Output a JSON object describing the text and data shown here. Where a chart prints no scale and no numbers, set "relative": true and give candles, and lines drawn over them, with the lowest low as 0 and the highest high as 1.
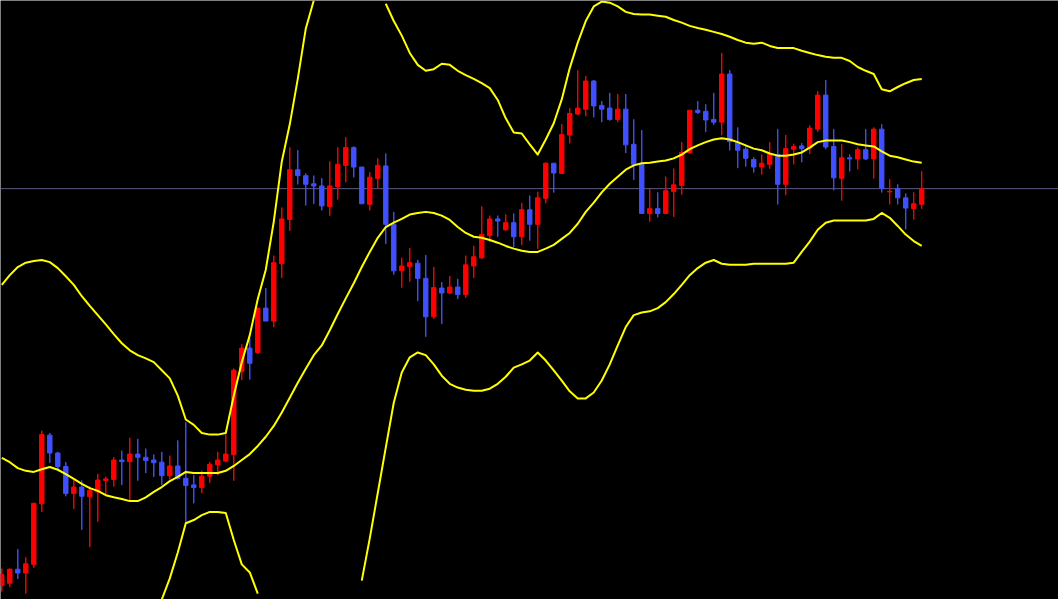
{
  "chart_data": {
    "type": "candlestick",
    "relative": true,
    "categories": [
      null,
      null,
      null,
      null,
      null,
      null,
      null,
      null,
      null,
      null,
      null,
      null,
      null,
      null,
      null,
      null,
      null,
      null,
      null,
      null,
      null,
      null,
      null,
      null,
      null,
      null,
      null,
      null,
      null,
      null,
      null,
      null,
      null,
      null,
      null,
      null,
      null,
      null,
      null,
      null,
      null,
      null,
      null,
      null,
      null,
      null,
      null,
      null,
      null,
      null,
      null,
      null,
      null,
      null,
      null,
      null,
      null,
      null,
      null,
      null,
      null,
      null,
      null,
      null,
      null,
      null,
      null,
      null,
      null,
      null,
      null,
      null,
      null,
      null,
      null,
      null,
      null,
      null,
      null,
      null,
      null,
      null,
      null,
      null,
      null,
      null,
      null,
      null,
      null,
      null,
      null,
      null,
      null,
      null,
      null,
      null,
      null,
      null,
      null,
      null,
      null,
      null,
      null,
      null,
      null,
      null,
      null,
      null,
      null,
      null,
      null,
      null,
      null,
      null,
      null,
      null
    ],
    "ohlc": [
      [
        0.015,
        0.046,
        0.004,
        0.035
      ],
      [
        0.019,
        0.046,
        0.012,
        0.045
      ],
      [
        0.045,
        0.082,
        0.027,
        0.038
      ],
      [
        0.038,
        0.067,
        0,
        0.055
      ],
      [
        0.054,
        0.167,
        0.048,
        0.167
      ],
      [
        0.166,
        0.301,
        0.151,
        0.294
      ],
      [
        0.293,
        0.297,
        0.242,
        0.26
      ],
      [
        0.26,
        0.262,
        0.229,
        0.235
      ],
      [
        0.235,
        0.243,
        0.18,
        0.185
      ],
      [
        0.185,
        0.211,
        0.157,
        0.197
      ],
      [
        0.197,
        0.209,
        0.118,
        0.18
      ],
      [
        0.179,
        0.198,
        0.086,
        0.191
      ],
      [
        0.188,
        0.221,
        0.133,
        0.21
      ],
      [
        0.209,
        0.216,
        0.183,
        0.212
      ],
      [
        0.211,
        0.252,
        0.198,
        0.247
      ],
      [
        0.247,
        0.264,
        0.201,
        0.244
      ],
      [
        0.244,
        0.288,
        0.173,
        0.258
      ],
      [
        0.258,
        0.286,
        0.209,
        0.252
      ],
      [
        0.252,
        0.268,
        0.223,
        0.246
      ],
      [
        0.247,
        0.257,
        0.216,
        0.242
      ],
      [
        0.243,
        0.262,
        0.201,
        0.218
      ],
      [
        0.218,
        0.255,
        0.211,
        0.236
      ],
      [
        0.236,
        0.283,
        0.211,
        0.213
      ],
      [
        0.213,
        0.317,
        0.131,
        0.2
      ],
      [
        0.201,
        0.219,
        0.167,
        0.196
      ],
      [
        0.196,
        0.227,
        0.186,
        0.217
      ],
      [
        0.217,
        0.243,
        0.205,
        0.239
      ],
      [
        0.238,
        0.262,
        0.219,
        0.247
      ],
      [
        0.245,
        0.294,
        0.243,
        0.258
      ],
      [
        0.257,
        0.416,
        0.209,
        0.413
      ],
      [
        0.411,
        0.461,
        0.395,
        0.454
      ],
      [
        0.454,
        0.473,
        0.396,
        0.426
      ],
      [
        0.446,
        0.528,
        0.443,
        0.528
      ],
      [
        0.528,
        0.565,
        0.504,
        0.504
      ],
      [
        0.504,
        0.625,
        0.493,
        0.612
      ],
      [
        0.61,
        0.714,
        0.584,
        0.693
      ],
      [
        0.692,
        0.825,
        0.671,
        0.784
      ],
      [
        0.784,
        0.82,
        0.757,
        0.773
      ],
      [
        0.773,
        0.777,
        0.718,
        0.757
      ],
      [
        0.758,
        0.773,
        0.721,
        0.754
      ],
      [
        0.754,
        0.768,
        0.709,
        0.717
      ],
      [
        0.716,
        0.799,
        0.699,
        0.754
      ],
      [
        0.753,
        0.825,
        0.729,
        0.794
      ],
      [
        0.792,
        0.844,
        0.761,
        0.825
      ],
      [
        0.825,
        0.827,
        0.77,
        0.789
      ],
      [
        0.789,
        0.789,
        0.721,
        0.721
      ],
      [
        0.72,
        0.779,
        0.709,
        0.77
      ],
      [
        0.768,
        0.805,
        0.749,
        0.792
      ],
      [
        0.791,
        0.814,
        0.647,
        0.683
      ],
      [
        0.683,
        0.706,
        0.59,
        0.597
      ],
      [
        0.597,
        0.621,
        0.566,
        0.606
      ],
      [
        0.605,
        0.639,
        0.577,
        0.612
      ],
      [
        0.611,
        0.617,
        0.541,
        0.583
      ],
      [
        0.583,
        0.626,
        0.475,
        0.512
      ],
      [
        0.512,
        0.604,
        0.508,
        0.566
      ],
      [
        0.565,
        0.576,
        0.499,
        0.556
      ],
      [
        0.556,
        0.587,
        0.554,
        0.567
      ],
      [
        0.567,
        0.582,
        0.545,
        0.553
      ],
      [
        0.553,
        0.625,
        0.547,
        0.608
      ],
      [
        0.606,
        0.643,
        0.584,
        0.623
      ],
      [
        0.621,
        0.716,
        0.619,
        0.664
      ],
      [
        0.662,
        0.699,
        0.651,
        0.693
      ],
      [
        0.693,
        0.699,
        0.66,
        0.689
      ],
      [
        0.673,
        0.701,
        0.671,
        0.686
      ],
      [
        0.686,
        0.703,
        0.641,
        0.66
      ],
      [
        0.66,
        0.722,
        0.645,
        0.71
      ],
      [
        0.71,
        0.736,
        0.653,
        0.683
      ],
      [
        0.683,
        0.743,
        0.638,
        0.732
      ],
      [
        0.731,
        0.797,
        0.722,
        0.796
      ],
      [
        0.796,
        0.796,
        0.742,
        0.778
      ],
      [
        0.777,
        0.868,
        0.777,
        0.849
      ],
      [
        0.848,
        0.898,
        0.833,
        0.888
      ],
      [
        0.887,
        0.968,
        0.885,
        0.898
      ],
      [
        0.896,
        0.957,
        0.883,
        0.948
      ],
      [
        0.948,
        0.95,
        0.881,
        0.902
      ],
      [
        0.903,
        0.911,
        0.872,
        0.896
      ],
      [
        0.898,
        0.926,
        0.875,
        0.877
      ],
      [
        0.877,
        0.924,
        0.872,
        0.896
      ],
      [
        0.896,
        0.924,
        0.815,
        0.83
      ],
      [
        0.831,
        0.877,
        0.765,
        0.794
      ],
      [
        0.794,
        0.857,
        0.703,
        0.703
      ],
      [
        0.703,
        0.748,
        0.688,
        0.712
      ],
      [
        0.712,
        0.742,
        0.696,
        0.703
      ],
      [
        0.703,
        0.771,
        0.703,
        0.745
      ],
      [
        0.744,
        0.786,
        0.697,
        0.756
      ],
      [
        0.755,
        0.835,
        0.738,
        0.816
      ],
      [
        0.815,
        0.894,
        0.815,
        0.894
      ],
      [
        0.894,
        0.911,
        0.887,
        0.89
      ],
      [
        0.892,
        0.905,
        0.854,
        0.876
      ],
      [
        0.877,
        0.926,
        0.867,
        0.872
      ],
      [
        0.872,
        1,
        0.848,
        0.961
      ],
      [
        0.961,
        0.968,
        0.82,
        0.836
      ],
      [
        0.835,
        0.862,
        0.787,
        0.82
      ],
      [
        0.822,
        0.829,
        0.79,
        0.805
      ],
      [
        0.803,
        0.807,
        0.779,
        0.789
      ],
      [
        0.789,
        0.812,
        0.775,
        0.796
      ],
      [
        0.794,
        0.835,
        0.786,
        0.812
      ],
      [
        0.812,
        0.859,
        0.72,
        0.757
      ],
      [
        0.757,
        0.848,
        0.737,
        0.823
      ],
      [
        0.822,
        0.832,
        0.794,
        0.827
      ],
      [
        0.828,
        0.833,
        0.798,
        0.823
      ],
      [
        0.824,
        0.866,
        0.813,
        0.861
      ],
      [
        0.859,
        0.929,
        0.854,
        0.922
      ],
      [
        0.922,
        0.95,
        0.822,
        0.826
      ],
      [
        0.827,
        0.859,
        0.746,
        0.769
      ],
      [
        0.768,
        0.831,
        0.727,
        0.806
      ],
      [
        0.806,
        0.812,
        0.781,
        0.804
      ],
      [
        0.804,
        0.825,
        0.785,
        0.821
      ],
      [
        0.821,
        0.859,
        0.802,
        0.804
      ],
      [
        0.804,
        0.862,
        0.768,
        0.859
      ],
      [
        0.859,
        0.868,
        0.742,
        0.749
      ],
      [
        0.743,
        0.766,
        0.72,
        0.744
      ],
      [
        0.749,
        0.757,
        0.72,
        0.732
      ],
      [
        0.732,
        0.74,
        0.674,
        0.713
      ],
      [
        0.712,
        0.742,
        0.692,
        0.721
      ],
      [
        0.72,
        0.781,
        0.712,
        0.749
      ]
    ],
    "colors": [
      "#ff0000",
      "#ff0000",
      "#4050ff",
      "#ff0000",
      "#ff0000",
      "#ff0000",
      "#4050ff",
      "#4050ff",
      "#4050ff",
      "#ff0000",
      "#4050ff",
      "#ff0000",
      "#ff0000",
      "#ff0000",
      "#ff0000",
      "#4050ff",
      "#ff0000",
      "#4050ff",
      "#4050ff",
      "#4050ff",
      "#4050ff",
      "#ff0000",
      "#4050ff",
      "#4050ff",
      "#4050ff",
      "#ff0000",
      "#ff0000",
      "#ff0000",
      "#ff0000",
      "#ff0000",
      "#ff0000",
      "#4050ff",
      "#ff0000",
      "#4050ff",
      "#ff0000",
      "#ff0000",
      "#ff0000",
      "#4050ff",
      "#4050ff",
      "#4050ff",
      "#4050ff",
      "#ff0000",
      "#ff0000",
      "#ff0000",
      "#4050ff",
      "#4050ff",
      "#ff0000",
      "#ff0000",
      "#4050ff",
      "#4050ff",
      "#ff0000",
      "#ff0000",
      "#4050ff",
      "#4050ff",
      "#ff0000",
      "#4050ff",
      "#ff0000",
      "#4050ff",
      "#ff0000",
      "#ff0000",
      "#ff0000",
      "#ff0000",
      "#4050ff",
      "#ff0000",
      "#4050ff",
      "#ff0000",
      "#4050ff",
      "#ff0000",
      "#ff0000",
      "#4050ff",
      "#ff0000",
      "#ff0000",
      "#ff0000",
      "#ff0000",
      "#4050ff",
      "#4050ff",
      "#4050ff",
      "#ff0000",
      "#4050ff",
      "#4050ff",
      "#4050ff",
      "#ff0000",
      "#4050ff",
      "#ff0000",
      "#ff0000",
      "#ff0000",
      "#ff0000",
      "#4050ff",
      "#4050ff",
      "#4050ff",
      "#ff0000",
      "#4050ff",
      "#4050ff",
      "#4050ff",
      "#4050ff",
      "#ff0000",
      "#ff0000",
      "#4050ff",
      "#ff0000",
      "#ff0000",
      "#4050ff",
      "#ff0000",
      "#ff0000",
      "#4050ff",
      "#4050ff",
      "#ff0000",
      "#4050ff",
      "#ff0000",
      "#4050ff",
      "#ff0000",
      "#4050ff",
      "#ff0000",
      "#4050ff",
      "#4050ff",
      "#ff0000",
      "#ff0000"
    ],
    "series": [
      {
        "type": "line",
        "color": "#ffff00",
        "values": [
          0.571,
          0.589,
          0.604,
          0.612,
          0.615,
          0.617,
          0.613,
          0.602,
          0.587,
          0.571,
          0.55,
          0.532,
          0.515,
          0.498,
          0.48,
          0.463,
          0.45,
          0.441,
          0.435,
          0.428,
          0.413,
          0.398,
          0.366,
          0.322,
          0.312,
          0.297,
          0.294,
          0.294,
          0.297,
          0.366,
          0.428,
          0.478,
          0.545,
          0.599,
          0.688,
          0.799,
          0.868,
          0.952,
          1.045,
          1.097,
          null,
          null,
          null,
          null,
          null,
          null,
          null,
          null,
          1.091,
          1.059,
          1.032,
          1.0,
          0.978,
          0.967,
          0.97,
          0.98,
          0.978,
          0.967,
          0.959,
          0.952,
          0.944,
          0.935,
          0.913,
          0.879,
          0.853,
          0.851,
          0.831,
          0.812,
          0.84,
          0.87,
          0.914,
          0.972,
          1.019,
          1.059,
          1.086,
          1.095,
          1.093,
          1.086,
          1.076,
          1.072,
          1.071,
          1.071,
          1.069,
          1.067,
          1.061,
          1.056,
          1.05,
          1.046,
          1.043,
          1.039,
          1.035,
          1.03,
          1.024,
          1.019,
          1.017,
          1.019,
          1.013,
          1.009,
          1.009,
          1.009,
          1.004,
          1.0,
          0.996,
          0.993,
          0.991,
          0.991,
          0.985,
          0.974,
          0.967,
          0.961,
          0.933,
          0.929,
          0.937,
          0.944,
          0.95,
          0.952
        ]
      },
      {
        "type": "line",
        "color": "#ffff00",
        "values": [
          0.251,
          0.243,
          0.232,
          0.227,
          0.225,
          0.23,
          0.234,
          0.229,
          0.221,
          0.212,
          0.203,
          0.195,
          0.19,
          0.182,
          0.178,
          0.175,
          0.171,
          0.171,
          0.178,
          0.188,
          0.197,
          0.208,
          0.216,
          0.225,
          0.223,
          0.223,
          0.223,
          0.223,
          0.227,
          0.236,
          0.247,
          0.258,
          0.273,
          0.29,
          0.31,
          0.335,
          0.362,
          0.39,
          0.416,
          0.441,
          0.459,
          0.487,
          0.517,
          0.546,
          0.574,
          0.604,
          0.632,
          0.658,
          0.678,
          0.686,
          0.693,
          0.701,
          0.704,
          0.706,
          0.704,
          0.699,
          0.691,
          0.678,
          0.667,
          0.66,
          0.658,
          0.654,
          0.649,
          0.643,
          0.638,
          0.634,
          0.632,
          0.632,
          0.638,
          0.645,
          0.656,
          0.667,
          0.684,
          0.706,
          0.723,
          0.742,
          0.758,
          0.771,
          0.784,
          0.792,
          0.796,
          0.797,
          0.799,
          0.801,
          0.805,
          0.812,
          0.822,
          0.829,
          0.835,
          0.84,
          0.842,
          0.84,
          0.835,
          0.829,
          0.823,
          0.82,
          0.814,
          0.81,
          0.81,
          0.812,
          0.816,
          0.825,
          0.835,
          0.838,
          0.838,
          0.838,
          0.835,
          0.831,
          0.829,
          0.827,
          0.818,
          0.81,
          0.807,
          0.803,
          0.799,
          0.797
        ]
      },
      {
        "type": "line",
        "color": "#ffff00",
        "values": [
          null,
          null,
          null,
          null,
          null,
          null,
          null,
          null,
          null,
          null,
          null,
          null,
          null,
          null,
          null,
          null,
          null,
          null,
          null,
          null,
          -0.011,
          0.028,
          0.076,
          0.13,
          0.136,
          0.145,
          0.151,
          0.151,
          0.149,
          0.099,
          0.054,
          0.039,
          0.0,
          null,
          null,
          null,
          null,
          null,
          null,
          null,
          null,
          null,
          null,
          null,
          null,
          0.024,
          0.102,
          0.186,
          0.27,
          0.353,
          0.409,
          0.437,
          0.446,
          0.441,
          0.424,
          0.403,
          0.388,
          0.381,
          0.377,
          0.375,
          0.375,
          0.379,
          0.388,
          0.401,
          0.418,
          0.424,
          0.431,
          0.446,
          0.431,
          0.413,
          0.394,
          0.374,
          0.361,
          0.361,
          0.372,
          0.394,
          0.424,
          0.459,
          0.493,
          0.515,
          0.52,
          0.522,
          0.528,
          0.539,
          0.554,
          0.571,
          0.589,
          0.602,
          0.612,
          0.617,
          0.61,
          0.608,
          0.608,
          0.608,
          0.61,
          0.61,
          0.61,
          0.61,
          0.61,
          0.612,
          0.632,
          0.651,
          0.673,
          0.686,
          0.69,
          0.69,
          0.69,
          0.69,
          0.69,
          0.693,
          0.704,
          0.695,
          0.68,
          0.664,
          0.652,
          0.643
        ]
      }
    ],
    "ref_lines": [
      {
        "axis": "y",
        "value": 0.749,
        "color": "#5a5a80"
      }
    ]
  }
}
